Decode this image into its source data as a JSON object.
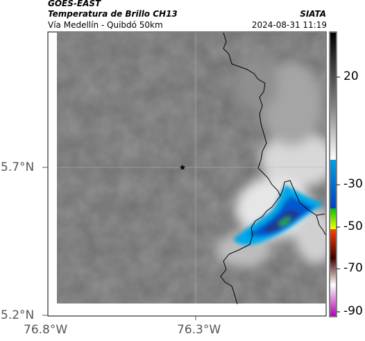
{
  "header": {
    "satellite": "GOES-EAST",
    "product": "Temperatura de Brillo CH13",
    "region": "Vía Medellín - Quibdó 50km",
    "agency": "SIATA",
    "datetime": "2024-08-31 11:19"
  },
  "axes": {
    "lat_ticks": [
      "5.7°N",
      "5.2°N"
    ],
    "lon_ticks": [
      "76.8°W",
      "76.3°W"
    ]
  },
  "colorbar": {
    "ticks": [
      "20",
      "-30",
      "-50",
      "-70",
      "-90"
    ],
    "colors": [
      "#000000",
      "#888888",
      "#ffffff",
      "#00a0e0",
      "#0040c0",
      "#00c000",
      "#ffff00",
      "#ff4000",
      "#400000",
      "#b000b0"
    ]
  },
  "markers": {
    "point_symbol": "★"
  }
}
